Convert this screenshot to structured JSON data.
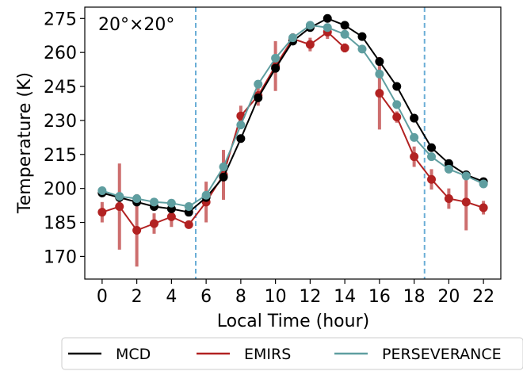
{
  "chart_data": {
    "type": "line",
    "annotation": "20°×20°",
    "xlabel": "Local Time (hour)",
    "ylabel": "Temperature (K)",
    "xlim": [
      -1,
      23
    ],
    "ylim": [
      160,
      280
    ],
    "xticks": [
      0,
      2,
      4,
      6,
      8,
      10,
      12,
      14,
      16,
      18,
      20,
      22
    ],
    "yticks": [
      170,
      185,
      200,
      215,
      230,
      245,
      260,
      275
    ],
    "grid": false,
    "legend_placement": "bottom-center-outside",
    "vlines": [
      {
        "x": 5.4,
        "color": "#6aaed6"
      },
      {
        "x": 18.6,
        "color": "#6aaed6"
      }
    ],
    "series": [
      {
        "name": "MCD",
        "color": "#000000",
        "x": [
          0,
          1,
          2,
          3,
          4,
          5,
          6,
          7,
          8,
          9,
          10,
          11,
          12,
          13,
          14,
          15,
          16,
          17,
          18,
          19,
          20,
          21,
          22
        ],
        "y": [
          198,
          196,
          194,
          192,
          191,
          189.5,
          196,
          205,
          222,
          240,
          253,
          265,
          271,
          275,
          272,
          267,
          256,
          245,
          231,
          218,
          211,
          206,
          203
        ]
      },
      {
        "name": "EMIRS",
        "color": "#b22222",
        "errcolor": "#cd6e6e",
        "x": [
          0,
          1,
          2,
          3,
          4,
          5,
          6,
          7,
          8,
          9,
          10,
          11,
          12,
          13,
          14,
          15,
          16,
          17,
          18,
          19,
          20,
          21,
          22
        ],
        "y": [
          189.5,
          192,
          181.5,
          184.5,
          187.5,
          184,
          194,
          206,
          232,
          241,
          254,
          266,
          263.5,
          269,
          262,
          null,
          242,
          231.5,
          214,
          204,
          195.5,
          194,
          191.5
        ],
        "err": [
          4.5,
          19,
          16,
          4.5,
          4.5,
          0,
          9,
          11,
          4.5,
          4.5,
          11,
          2.5,
          3,
          3,
          2,
          null,
          16,
          2.5,
          4.5,
          4.5,
          4.5,
          12.5,
          3
        ]
      },
      {
        "name": "PERSEVERANCE",
        "color": "#5f9ea0",
        "x": [
          0,
          1,
          2,
          3,
          4,
          5,
          6,
          7,
          8,
          9,
          10,
          11,
          12,
          13,
          14,
          15,
          16,
          17,
          18,
          19,
          20,
          21,
          22
        ],
        "y": [
          199,
          196.5,
          195.5,
          194,
          193.5,
          192,
          197,
          209.5,
          228,
          246,
          257.5,
          266.5,
          272,
          271,
          268,
          261.5,
          250.5,
          237,
          222.5,
          214,
          208.5,
          205.5,
          202
        ]
      }
    ]
  }
}
